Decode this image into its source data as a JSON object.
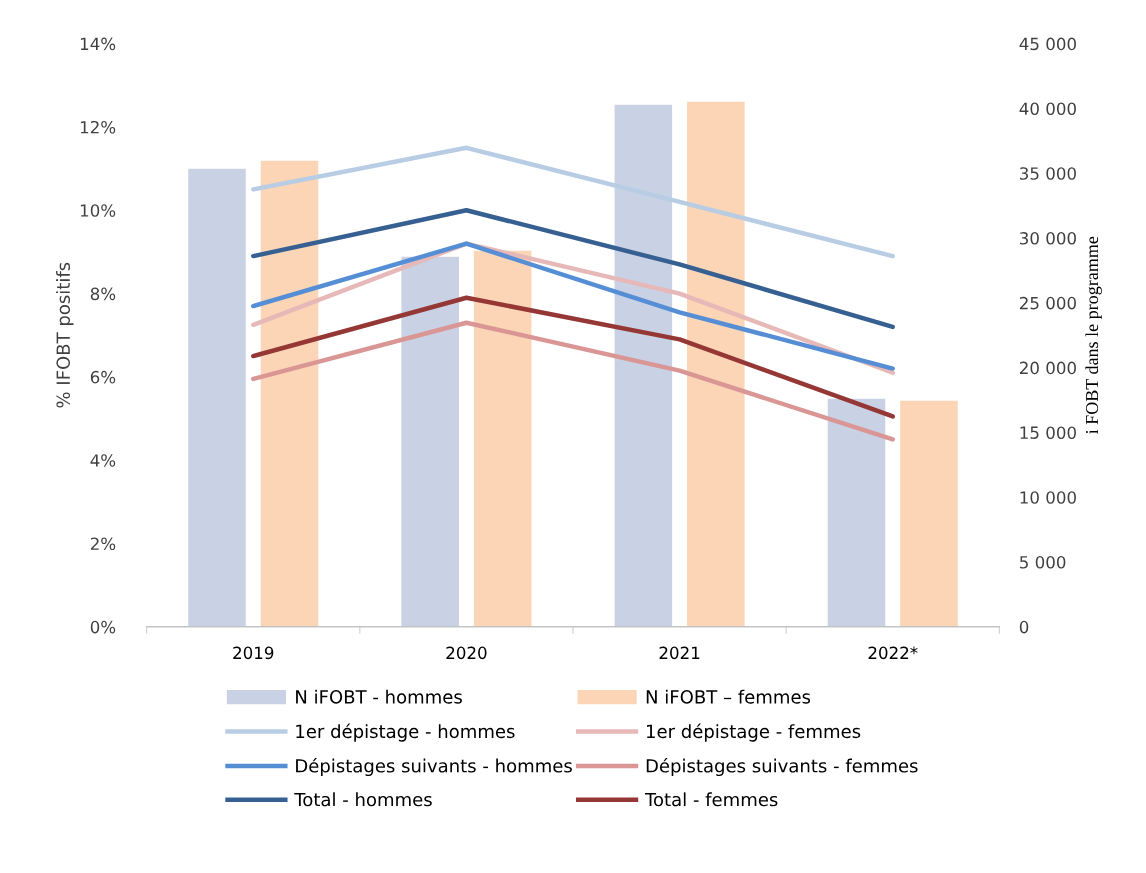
{
  "chart_data": {
    "type": "line",
    "ylabel": "% IFOBT positifs",
    "y2label": "i FOBT dans le programme",
    "categories": [
      "2019",
      "2020",
      "2021",
      "2022*"
    ],
    "ylim": [
      0,
      14
    ],
    "yticks": [
      {
        "value": 0,
        "label": "0%"
      },
      {
        "value": 2,
        "label": "2%"
      },
      {
        "value": 4,
        "label": "4%"
      },
      {
        "value": 6,
        "label": "6%"
      },
      {
        "value": 8,
        "label": "8%"
      },
      {
        "value": 10,
        "label": "10%"
      },
      {
        "value": 12,
        "label": "12%"
      },
      {
        "value": 14,
        "label": "14%"
      }
    ],
    "y2lim": [
      0,
      45000
    ],
    "y2ticks": [
      {
        "value": 0,
        "label": "0"
      },
      {
        "value": 5000,
        "label": "5 000"
      },
      {
        "value": 10000,
        "label": "10 000"
      },
      {
        "value": 15000,
        "label": "15 000"
      },
      {
        "value": 20000,
        "label": "20 000"
      },
      {
        "value": 25000,
        "label": "25 000"
      },
      {
        "value": 30000,
        "label": "30 000"
      },
      {
        "value": 35000,
        "label": "35 000"
      },
      {
        "value": 40000,
        "label": "40 000"
      },
      {
        "value": 45000,
        "label": "45 000"
      }
    ],
    "grid": false,
    "legend": "bottom",
    "marker": "none",
    "line_style": "solid",
    "series": [
      {
        "name": "N iFOBT - hommes",
        "type": "bar",
        "axis": "y2",
        "color": "#c9d1e4",
        "values": [
          35350,
          28560,
          40290,
          17600
        ]
      },
      {
        "name": "N iFOBT – femmes",
        "type": "bar",
        "axis": "y2",
        "color": "#fbd5b5",
        "values": [
          35970,
          29020,
          40520,
          17440
        ]
      },
      {
        "name": "1er dépistage - hommes",
        "color": "#b8cce4",
        "values": [
          10.5,
          11.5,
          10.2,
          8.9
        ]
      },
      {
        "name": "1er dépistage - femmes",
        "color": "#e6b8b7",
        "values": [
          7.25,
          9.2,
          8.0,
          6.1
        ]
      },
      {
        "name": "Dépistages suivants - hommes",
        "color": "#558ed5",
        "values": [
          7.7,
          9.2,
          7.55,
          6.2
        ]
      },
      {
        "name": "Dépistages suivants - femmes",
        "color": "#d99694",
        "values": [
          5.95,
          7.3,
          6.15,
          4.5
        ]
      },
      {
        "name": "Total - hommes",
        "color": "#376092",
        "values": [
          8.9,
          10.0,
          8.7,
          7.2
        ]
      },
      {
        "name": "Total - femmes",
        "color": "#953735",
        "values": [
          6.5,
          7.9,
          6.9,
          5.05
        ]
      }
    ]
  }
}
